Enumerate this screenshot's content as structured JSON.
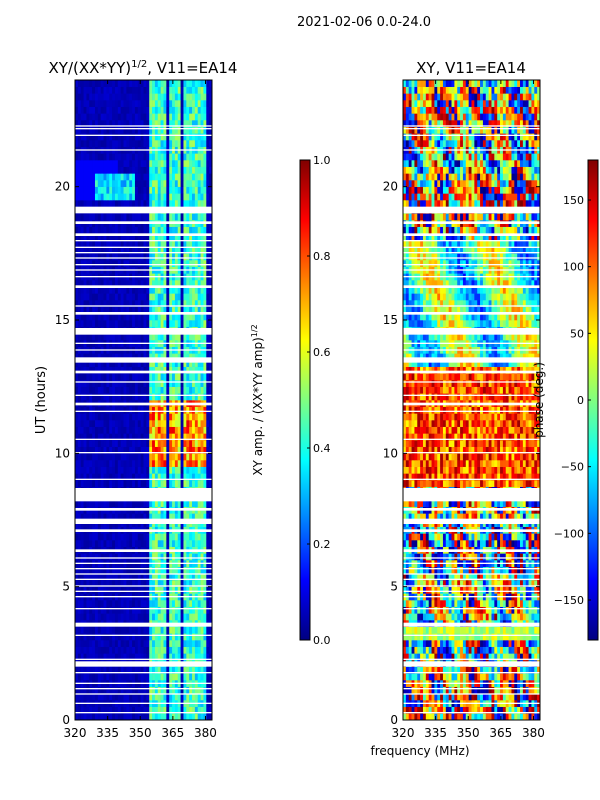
{
  "suptitle": "2021-02-06 0.0-24.0",
  "xlabel_shared": "frequency (MHz)",
  "colors": {
    "jet": [
      "#000080",
      "#0000ff",
      "#0080ff",
      "#00ffff",
      "#80ff80",
      "#ffff00",
      "#ff8000",
      "#ff0000",
      "#800000"
    ],
    "band_white": "#ffffff",
    "frame": "#000000"
  },
  "chart_data": [
    {
      "type": "heatmap",
      "id": "amp",
      "title": "XY/(XX*YY)",
      "title_exp": "1/2",
      "title_suffix": ", V11=EA14",
      "xlabel": "",
      "ylabel": "UT (hours)",
      "xlim": [
        320,
        383
      ],
      "ylim": [
        0,
        24
      ],
      "xticks": [
        320,
        335,
        350,
        365,
        380
      ],
      "yticks": [
        0,
        5,
        10,
        15,
        20
      ],
      "active_channels_mhz": [
        [
          355,
          358
        ],
        [
          359,
          360
        ],
        [
          360.5,
          362
        ],
        [
          364,
          366
        ],
        [
          367,
          368.5
        ],
        [
          370,
          371.5
        ],
        [
          373,
          375
        ],
        [
          376,
          377.5
        ],
        [
          378.5,
          380
        ]
      ],
      "colorbar": {
        "label": "XY amp. / (XX*YY amp)",
        "label_exp": "1/2",
        "range": [
          0.0,
          1.0
        ],
        "ticks": [
          0.0,
          0.2,
          0.4,
          0.6,
          0.8,
          1.0
        ],
        "ticklabels": [
          "0.0",
          "0.2",
          "0.4",
          "0.6",
          "0.8",
          "1.0"
        ]
      }
    },
    {
      "type": "heatmap",
      "id": "phase",
      "title": "XY, V11=EA14",
      "xlabel": "frequency (MHz)",
      "ylabel": "",
      "xlim": [
        320,
        383
      ],
      "ylim": [
        0,
        24
      ],
      "xticks": [
        320,
        335,
        350,
        365,
        380
      ],
      "yticks": [
        0,
        5,
        10,
        15,
        20
      ],
      "colorbar": {
        "label": "phase (deg.)",
        "range": [
          -180,
          180
        ],
        "ticks": [
          150,
          100,
          50,
          0,
          -50,
          -100,
          -150
        ],
        "ticklabels": [
          "150",
          "100",
          "50",
          "0",
          "−50",
          "−100",
          "−150"
        ]
      }
    }
  ],
  "flagged_gaps_hours": [
    [
      0.25,
      0.3
    ],
    [
      0.6,
      0.65
    ],
    [
      0.95,
      1.0
    ],
    [
      1.15,
      1.2
    ],
    [
      1.35,
      1.4
    ],
    [
      1.75,
      1.8
    ],
    [
      2.0,
      2.2
    ],
    [
      2.25,
      2.3
    ],
    [
      3.15,
      3.2
    ],
    [
      3.5,
      3.65
    ],
    [
      4.15,
      4.2
    ],
    [
      4.6,
      4.65
    ],
    [
      4.8,
      4.85
    ],
    [
      5.0,
      5.05
    ],
    [
      5.25,
      5.3
    ],
    [
      5.45,
      5.5
    ],
    [
      5.65,
      5.7
    ],
    [
      5.85,
      5.9
    ],
    [
      6.05,
      6.1
    ],
    [
      6.3,
      6.4
    ],
    [
      7.05,
      7.15
    ],
    [
      7.35,
      7.55
    ],
    [
      7.85,
      7.95
    ],
    [
      8.2,
      8.7
    ],
    [
      9.0,
      9.05
    ],
    [
      10.0,
      10.05
    ],
    [
      10.5,
      10.55
    ],
    [
      11.55,
      11.6
    ],
    [
      11.8,
      11.9
    ],
    [
      12.15,
      12.2
    ],
    [
      12.65,
      12.7
    ],
    [
      13.0,
      13.1
    ],
    [
      13.4,
      13.6
    ],
    [
      13.85,
      13.9
    ],
    [
      14.1,
      14.15
    ],
    [
      14.45,
      14.7
    ],
    [
      15.2,
      15.3
    ],
    [
      15.5,
      15.55
    ],
    [
      16.2,
      16.3
    ],
    [
      16.6,
      16.65
    ],
    [
      16.85,
      16.9
    ],
    [
      17.05,
      17.1
    ],
    [
      17.3,
      17.35
    ],
    [
      17.5,
      17.55
    ],
    [
      17.7,
      17.75
    ],
    [
      17.95,
      18.0
    ],
    [
      18.15,
      18.25
    ],
    [
      18.6,
      18.7
    ],
    [
      19.0,
      19.25
    ],
    [
      21.35,
      21.4
    ],
    [
      21.9,
      21.95
    ],
    [
      22.15,
      22.2
    ],
    [
      22.25,
      22.3
    ]
  ]
}
